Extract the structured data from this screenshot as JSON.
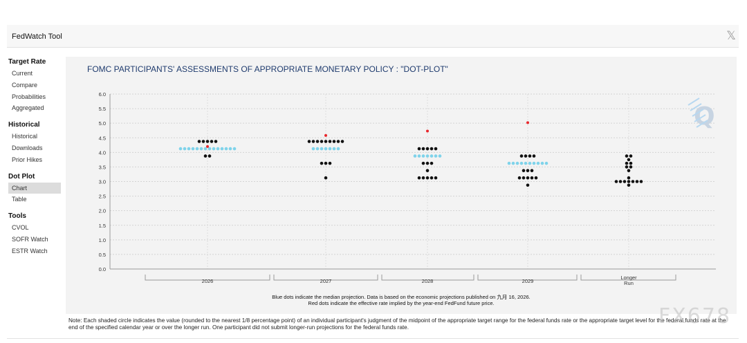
{
  "app": {
    "title": "FedWatch Tool"
  },
  "sidebar": {
    "groups": [
      {
        "title": "Target Rate",
        "items": [
          "Current",
          "Compare",
          "Probabilities",
          "Aggregated"
        ]
      },
      {
        "title": "Historical",
        "items": [
          "Historical",
          "Downloads",
          "Prior Hikes"
        ]
      },
      {
        "title": "Dot Plot",
        "items": [
          "Chart",
          "Table"
        ]
      },
      {
        "title": "Tools",
        "items": [
          "CVOL",
          "SOFR Watch",
          "ESTR Watch"
        ]
      }
    ],
    "active_item": "Chart"
  },
  "chart_data": {
    "type": "scatter",
    "title": "FOMC PARTICIPANTS' ASSESSMENTS OF APPROPRIATE MONETARY POLICY : \"DOT-PLOT\"",
    "categories": [
      "2026",
      "2027",
      "2028",
      "2029",
      "Longer Run"
    ],
    "ylim": [
      0,
      6
    ],
    "yticks": [
      "0.0",
      "0.5",
      "1.0",
      "1.5",
      "2.0",
      "2.5",
      "3.0",
      "3.5",
      "4.0",
      "4.5",
      "5.0",
      "5.5",
      "6.0"
    ],
    "grid": true,
    "colors": {
      "participant": "#111111",
      "median": "#7fd3ea",
      "implied": "#e8262b"
    },
    "participant_dots": [
      {
        "category": "2026",
        "rate": 4.375,
        "count": 5
      },
      {
        "category": "2026",
        "rate": 3.875,
        "count": 2
      },
      {
        "category": "2027",
        "rate": 4.375,
        "count": 9
      },
      {
        "category": "2027",
        "rate": 3.625,
        "count": 3
      },
      {
        "category": "2027",
        "rate": 3.125,
        "count": 1
      },
      {
        "category": "2028",
        "rate": 4.125,
        "count": 5
      },
      {
        "category": "2028",
        "rate": 3.625,
        "count": 3
      },
      {
        "category": "2028",
        "rate": 3.375,
        "count": 1
      },
      {
        "category": "2028",
        "rate": 3.125,
        "count": 5
      },
      {
        "category": "2029",
        "rate": 3.875,
        "count": 4
      },
      {
        "category": "2029",
        "rate": 3.375,
        "count": 3
      },
      {
        "category": "2029",
        "rate": 3.125,
        "count": 5
      },
      {
        "category": "2029",
        "rate": 2.875,
        "count": 1
      },
      {
        "category": "Longer Run",
        "rate": 3.875,
        "count": 2
      },
      {
        "category": "Longer Run",
        "rate": 3.75,
        "count": 1
      },
      {
        "category": "Longer Run",
        "rate": 3.625,
        "count": 2
      },
      {
        "category": "Longer Run",
        "rate": 3.5,
        "count": 2
      },
      {
        "category": "Longer Run",
        "rate": 3.375,
        "count": 1
      },
      {
        "category": "Longer Run",
        "rate": 3.125,
        "count": 1
      },
      {
        "category": "Longer Run",
        "rate": 3.0,
        "count": 7
      },
      {
        "category": "Longer Run",
        "rate": 2.875,
        "count": 1
      }
    ],
    "median_dots": [
      {
        "category": "2026",
        "rate": 4.125,
        "count": 14
      },
      {
        "category": "2027",
        "rate": 4.125,
        "count": 7
      },
      {
        "category": "2028",
        "rate": 3.875,
        "count": 7
      },
      {
        "category": "2029",
        "rate": 3.625,
        "count": 10
      }
    ],
    "implied_rates": [
      {
        "category": "2026",
        "rate": 4.2
      },
      {
        "category": "2027",
        "rate": 4.58
      },
      {
        "category": "2028",
        "rate": 4.73
      },
      {
        "category": "2029",
        "rate": 5.02
      }
    ],
    "captions": [
      "Blue dots indicate the median projection. Data is based on the economic projections published on 九月 16, 2026.",
      "Red dots indicate the effective rate implied by the year-end FedFund future price."
    ],
    "logo_text": "Q"
  },
  "note": "Note: Each shaded circle indicates the value (rounded to the nearest 1/8 percentage point) of an individual participant's judgment of the midpoint of the appropriate target range for the federal funds rate or the appropriate target level for the federal funds rate at the end of the specified calendar year or over the longer run. One participant did not submit longer-run projections for the federal funds rate.",
  "watermark": "FX678"
}
